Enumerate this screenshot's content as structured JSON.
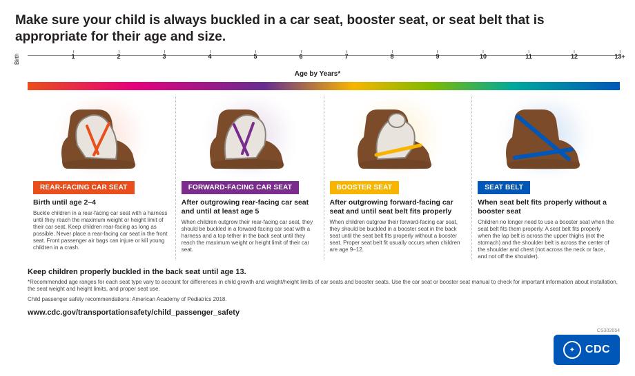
{
  "headline": "Make sure your child is always buckled in a car seat, booster seat, or seat belt that is appropriate for their age and size.",
  "axis": {
    "vertical_label": "Birth",
    "caption": "Age by Years*",
    "min": 0,
    "max": 13,
    "ticks": [
      {
        "pos": 1,
        "label": "1"
      },
      {
        "pos": 2,
        "label": "2"
      },
      {
        "pos": 3,
        "label": "3"
      },
      {
        "pos": 4,
        "label": "4"
      },
      {
        "pos": 5,
        "label": "5"
      },
      {
        "pos": 6,
        "label": "6"
      },
      {
        "pos": 7,
        "label": "7"
      },
      {
        "pos": 8,
        "label": "8"
      },
      {
        "pos": 9,
        "label": "9"
      },
      {
        "pos": 10,
        "label": "10"
      },
      {
        "pos": 11,
        "label": "11"
      },
      {
        "pos": 12,
        "label": "12"
      },
      {
        "pos": 13,
        "label": "13+"
      }
    ]
  },
  "gradient_stops": [
    {
      "at": 0,
      "color": "#e94e1b"
    },
    {
      "at": 18,
      "color": "#e5007d"
    },
    {
      "at": 40,
      "color": "#662d91"
    },
    {
      "at": 55,
      "color": "#f7b500"
    },
    {
      "at": 68,
      "color": "#7fba00"
    },
    {
      "at": 82,
      "color": "#00a99d"
    },
    {
      "at": 100,
      "color": "#0057b8"
    }
  ],
  "panels": [
    {
      "key": "rear",
      "accent": "#e94e1b",
      "pill": "REAR-FACING CAR SEAT",
      "sub": "Birth until age 2–4",
      "body": "Buckle children in a rear-facing car seat with a harness until they reach the maximum weight or height limit of their car seat. Keep children rear-facing as long as possible. Never place a rear-facing car seat in the front seat. Front passenger air bags can injure or kill young children in a crash."
    },
    {
      "key": "forward",
      "accent": "#7b2d8e",
      "pill": "FORWARD-FACING CAR SEAT",
      "sub": "After outgrowing rear-facing car seat and until at least age 5",
      "body": "When children outgrow their rear-facing car seat, they should be buckled in a forward-facing car seat with a harness and a top tether in the back seat until they reach the maximum weight or height limit of their car seat."
    },
    {
      "key": "booster",
      "accent": "#f7b500",
      "pill": "BOOSTER SEAT",
      "sub": "After outgrowing forward-facing car seat and until seat belt fits properly",
      "body": "When children outgrow their forward-facing car seat, they should be buckled in a booster seat in the back seat until the seat belt fits properly without a booster seat. Proper seat belt fit usually occurs when children are age 9–12."
    },
    {
      "key": "belt",
      "accent": "#0057b8",
      "pill": "SEAT BELT",
      "sub": "When seat belt fits properly without a booster seat",
      "body": "Children no longer need to use a booster seat when the seat belt fits them properly. A seat belt fits properly when the lap belt is across the upper thighs (not the stomach) and the shoulder belt is across the center of the shoulder and chest (not across the neck or face, and not off the shoulder)."
    }
  ],
  "seat_colors": {
    "cushion": "#7b4b2a",
    "shell": "#e8e3dc",
    "shell_stroke": "#8a837a"
  },
  "footer": {
    "keep_buckled": "Keep children properly buckled in the back seat until age 13.",
    "note": "*Recommended age ranges for each seat type vary to account for differences in child growth and weight/height limits of car seats and booster seats. Use the car seat or booster seat manual to check for important information about installation, the seat weight and height limits, and proper seat use.",
    "source": "Child passenger safety recommendations: American Academy of Pediatrics 2018.",
    "url": "www.cdc.gov/transportationsafety/child_passenger_safety",
    "doc_id": "CS302654"
  },
  "cdc_label": "CDC"
}
